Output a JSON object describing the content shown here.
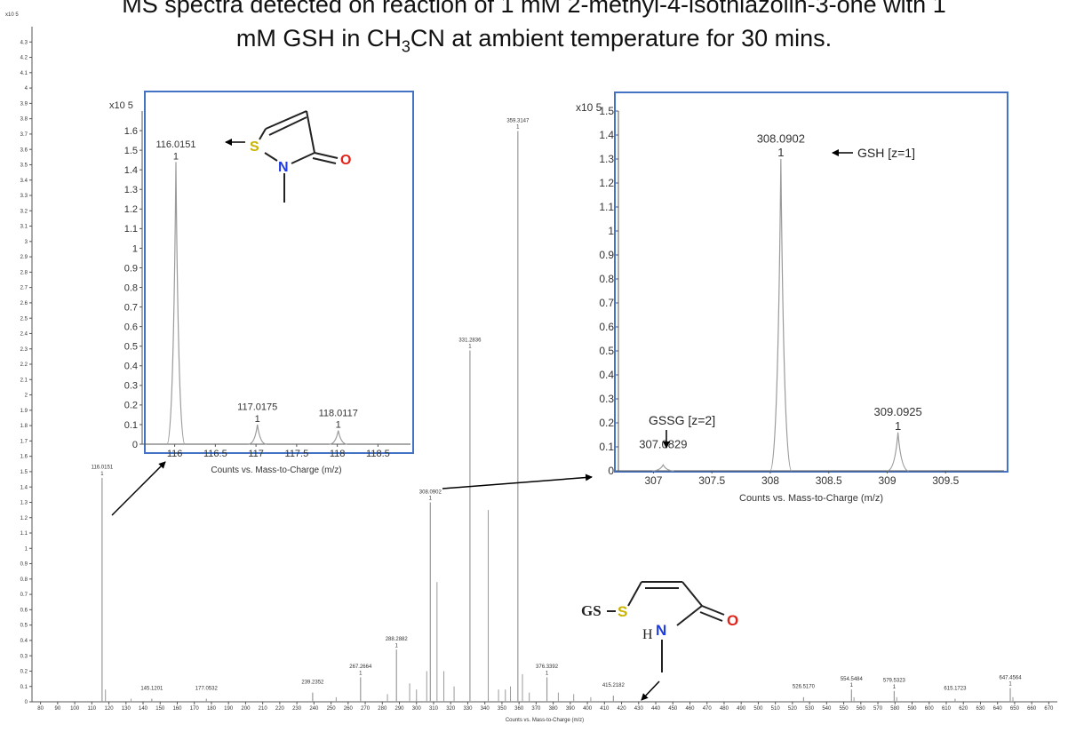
{
  "title": {
    "line1": "MS spectra detected on reaction of 1 mM 2-methyl-4-isothiazolin-3-one with 1",
    "line2_pre": "mM GSH in CH",
    "line2_sub": "3",
    "line2_post": "CN at ambient temperature for 30 mins."
  },
  "chart_data": [
    {
      "type": "line",
      "id": "main-spectrum",
      "xlabel": "Counts vs. Mass-to-Charge (m/z)",
      "y_multiplier": "x10 5",
      "xlim": [
        75,
        675
      ],
      "ylim": [
        0,
        4.4
      ],
      "x_ticks": [
        80,
        90,
        100,
        110,
        120,
        130,
        140,
        150,
        160,
        170,
        180,
        190,
        200,
        210,
        220,
        230,
        240,
        250,
        260,
        270,
        280,
        290,
        300,
        310,
        320,
        330,
        340,
        350,
        360,
        370,
        380,
        390,
        400,
        410,
        420,
        430,
        440,
        450,
        460,
        470,
        480,
        490,
        500,
        510,
        520,
        530,
        540,
        550,
        560,
        570,
        580,
        590,
        600,
        610,
        620,
        630,
        640,
        650,
        660,
        670
      ],
      "y_ticks": [
        0,
        0.1,
        0.2,
        0.3,
        0.4,
        0.5,
        0.6,
        0.7,
        0.8,
        0.9,
        1,
        1.1,
        1.2,
        1.3,
        1.4,
        1.5,
        1.6,
        1.7,
        1.8,
        1.9,
        2,
        2.1,
        2.2,
        2.3,
        2.4,
        2.5,
        2.6,
        2.7,
        2.8,
        2.9,
        3,
        3.1,
        3.2,
        3.3,
        3.4,
        3.5,
        3.6,
        3.7,
        3.8,
        3.9,
        4,
        4.1,
        4.2,
        4.3
      ],
      "peaks": [
        {
          "mz": 116.0151,
          "intensity": 1.46,
          "label": "116.0151",
          "z": "1"
        },
        {
          "mz": 145.1201,
          "intensity": 0.02,
          "label": "145.1201",
          "z": ""
        },
        {
          "mz": 177.0532,
          "intensity": 0.02,
          "label": "177.0532",
          "z": ""
        },
        {
          "mz": 239.2352,
          "intensity": 0.06,
          "label": "239.2352",
          "z": ""
        },
        {
          "mz": 267.2664,
          "intensity": 0.16,
          "label": "267.2664",
          "z": "1"
        },
        {
          "mz": 288.2882,
          "intensity": 0.34,
          "label": "288.2882",
          "z": "1"
        },
        {
          "mz": 308.0902,
          "intensity": 1.3,
          "label": "308.0902",
          "z": "1"
        },
        {
          "mz": 331.2836,
          "intensity": 2.29,
          "label": "331.2836",
          "z": "1"
        },
        {
          "mz": 359.3147,
          "intensity": 3.72,
          "label": "359.3147",
          "z": "1"
        },
        {
          "mz": 376.3392,
          "intensity": 0.16,
          "label": "376.3392",
          "z": "1"
        },
        {
          "mz": 415.2182,
          "intensity": 0.04,
          "label": "415.2182",
          "z": ""
        },
        {
          "mz": 526.517,
          "intensity": 0.03,
          "label": "526.5170",
          "z": ""
        },
        {
          "mz": 554.5484,
          "intensity": 0.08,
          "label": "554.5484",
          "z": "1"
        },
        {
          "mz": 579.5323,
          "intensity": 0.07,
          "label": "579.5323",
          "z": "1"
        },
        {
          "mz": 615.1723,
          "intensity": 0.02,
          "label": "615.1723",
          "z": ""
        },
        {
          "mz": 647.4564,
          "intensity": 0.09,
          "label": "647.4564",
          "z": "1"
        }
      ],
      "minor_peaks": [
        {
          "mz": 296.0,
          "intensity": 0.12
        },
        {
          "mz": 300.0,
          "intensity": 0.08
        },
        {
          "mz": 306.0,
          "intensity": 0.2
        },
        {
          "mz": 312.0,
          "intensity": 0.78
        },
        {
          "mz": 316.0,
          "intensity": 0.2
        },
        {
          "mz": 322.0,
          "intensity": 0.1
        },
        {
          "mz": 342.0,
          "intensity": 1.25
        },
        {
          "mz": 348.0,
          "intensity": 0.08
        },
        {
          "mz": 352.0,
          "intensity": 0.08
        },
        {
          "mz": 355.0,
          "intensity": 0.1
        },
        {
          "mz": 362.0,
          "intensity": 0.18
        },
        {
          "mz": 366.0,
          "intensity": 0.06
        },
        {
          "mz": 383.0,
          "intensity": 0.06
        },
        {
          "mz": 392.0,
          "intensity": 0.05
        },
        {
          "mz": 402.0,
          "intensity": 0.03
        },
        {
          "mz": 118.0,
          "intensity": 0.08
        },
        {
          "mz": 133.0,
          "intensity": 0.02
        },
        {
          "mz": 253.0,
          "intensity": 0.03
        },
        {
          "mz": 283.0,
          "intensity": 0.05
        },
        {
          "mz": 556.0,
          "intensity": 0.03
        },
        {
          "mz": 581.0,
          "intensity": 0.03
        },
        {
          "mz": 649.0,
          "intensity": 0.03
        }
      ]
    },
    {
      "type": "line",
      "id": "inset-left",
      "xlabel": "Counts vs. Mass-to-Charge (m/z)",
      "y_multiplier": "x10 5",
      "xlim": [
        115.6,
        118.9
      ],
      "ylim": [
        0,
        1.7
      ],
      "x_ticks": [
        116,
        116.5,
        117,
        117.5,
        118,
        118.5
      ],
      "y_ticks": [
        0,
        0.1,
        0.2,
        0.3,
        0.4,
        0.5,
        0.6,
        0.7,
        0.8,
        0.9,
        1,
        1.1,
        1.2,
        1.3,
        1.4,
        1.5,
        1.6
      ],
      "peaks": [
        {
          "mz": 116.0151,
          "intensity": 1.44,
          "label": "116.0151",
          "z": "1"
        },
        {
          "mz": 117.0175,
          "intensity": 0.1,
          "label": "117.0175",
          "z": "1"
        },
        {
          "mz": 118.0117,
          "intensity": 0.07,
          "label": "118.0117",
          "z": "1"
        }
      ]
    },
    {
      "type": "line",
      "id": "inset-right",
      "xlabel": "Counts vs. Mass-to-Charge (m/z)",
      "y_multiplier": "x10 5",
      "xlim": [
        306.7,
        310.0
      ],
      "ylim": [
        0,
        1.5
      ],
      "x_ticks": [
        307,
        307.5,
        308,
        308.5,
        309,
        309.5
      ],
      "y_ticks": [
        0,
        0.1,
        0.2,
        0.3,
        0.4,
        0.5,
        0.6,
        0.7,
        0.8,
        0.9,
        1,
        1.1,
        1.2,
        1.3,
        1.4,
        1.5
      ],
      "peaks": [
        {
          "mz": 307.0829,
          "intensity": 0.025,
          "label": "307.0829",
          "z": ""
        },
        {
          "mz": 308.0902,
          "intensity": 1.3,
          "label": "308.0902",
          "z": "1"
        },
        {
          "mz": 309.0925,
          "intensity": 0.16,
          "label": "309.0925",
          "z": "1"
        }
      ],
      "annotations": {
        "gsh": "GSH [z=1]",
        "gssg": "GSSG [z=2]"
      }
    }
  ],
  "structures": {
    "mit": {
      "s": "S",
      "n": "N",
      "o": "O"
    },
    "gs_adduct": {
      "gs": "GS",
      "s": "S",
      "hn_h": "H",
      "hn_n": "N",
      "o": "O"
    }
  },
  "colors": {
    "inset_border": "#4472c4",
    "sulfur": "#c8b400",
    "nitrogen": "#1f3de0",
    "oxygen": "#e0241c",
    "trace": "#9a9a9a"
  }
}
